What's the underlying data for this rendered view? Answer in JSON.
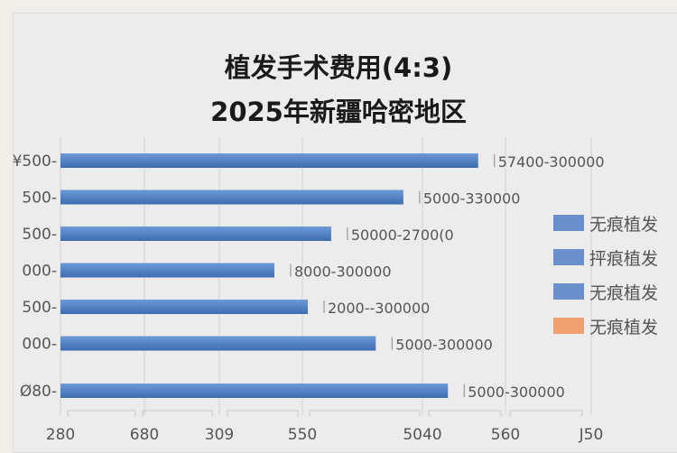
{
  "chart_data": {
    "type": "bar",
    "orientation": "horizontal",
    "title": "植发手术费用(4:3)",
    "subtitle": "2025年新疆哈密地区",
    "categories": [
      "¥500",
      "500",
      "500",
      "000",
      "500",
      "000",
      "Ø80"
    ],
    "values": [
      78.7,
      64.6,
      51.0,
      40.3,
      46.6,
      59.4,
      73.0
    ],
    "value_unit": "percent of axis length (axis tick labels are not a readable scale)",
    "data_labels": [
      "57400-300000",
      "5000-330000",
      "50000-2700(0",
      "8000-300000",
      "2000--300000",
      "5000-300000",
      "5000-300000"
    ],
    "x_tick_labels": [
      "280",
      "680",
      "309",
      "550",
      "5040",
      "560",
      "J50"
    ],
    "grid": "vertical",
    "legend": {
      "placement": "right",
      "entries": [
        {
          "label": "无痕植发",
          "color": "#6b8fca"
        },
        {
          "label": "抨痕植发",
          "color": "#6b8fca"
        },
        {
          "label": "无痕植发",
          "color": "#6b8fca"
        },
        {
          "label": "无痕植发",
          "color": "#f0a070"
        }
      ]
    },
    "colors": {
      "bar": "#4f81c7",
      "bar_dark": "#3c6cb0",
      "background": "#ececec"
    }
  }
}
